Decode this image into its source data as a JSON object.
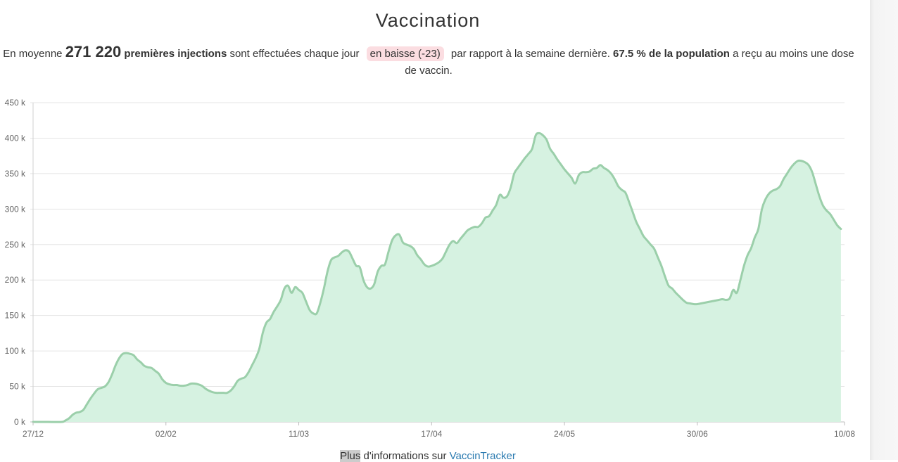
{
  "header": {
    "title": "Vaccination"
  },
  "summary": {
    "prefix": "En moyenne",
    "value": "271 220",
    "metric": "premières injections",
    "middle": "sont effectuées chaque jour",
    "trend_badge": "en baisse (-23)",
    "after_badge": "par rapport à la semaine dernière.",
    "population_pct": "67.5 % de la population",
    "suffix": "a reçu au moins une dose de vaccin."
  },
  "footer": {
    "highlight": "Plus",
    "text": "d'informations sur",
    "link_label": "VaccinTracker"
  },
  "colors": {
    "line": "#9bcfaa",
    "fill": "#d6f2e1",
    "badge_bg": "#fbdde1",
    "grid": "#e5e5e5",
    "link": "#2a7ab0"
  },
  "chart_data": {
    "type": "area",
    "title": "",
    "xlabel": "",
    "ylabel": "",
    "x_start": "27/12",
    "x_ticks": [
      {
        "label": "27/12",
        "day": 0
      },
      {
        "label": "02/02",
        "day": 37
      },
      {
        "label": "11/03",
        "day": 74
      },
      {
        "label": "17/04",
        "day": 111
      },
      {
        "label": "24/05",
        "day": 148
      },
      {
        "label": "30/06",
        "day": 185
      },
      {
        "label": "10/08",
        "day": 226
      }
    ],
    "y_ticks": [
      {
        "label": "0 k",
        "value": 0
      },
      {
        "label": "50 k",
        "value": 50000
      },
      {
        "label": "100 k",
        "value": 100000
      },
      {
        "label": "150 k",
        "value": 150000
      },
      {
        "label": "200 k",
        "value": 200000
      },
      {
        "label": "250 k",
        "value": 250000
      },
      {
        "label": "300 k",
        "value": 300000
      },
      {
        "label": "350 k",
        "value": 350000
      },
      {
        "label": "400 k",
        "value": 400000
      },
      {
        "label": "450 k",
        "value": 450000
      }
    ],
    "ylim": [
      0,
      450000
    ],
    "xlim_days": [
      0,
      226
    ],
    "grid": true,
    "legend": "none",
    "series": [
      {
        "points": [
          [
            0,
            0
          ],
          [
            4,
            0
          ],
          [
            8,
            0
          ],
          [
            9,
            2000
          ],
          [
            10,
            5000
          ],
          [
            11,
            10000
          ],
          [
            12,
            13000
          ],
          [
            13,
            14000
          ],
          [
            14,
            17000
          ],
          [
            15,
            25000
          ],
          [
            16,
            33000
          ],
          [
            17,
            40000
          ],
          [
            18,
            46000
          ],
          [
            19,
            48000
          ],
          [
            20,
            50000
          ],
          [
            21,
            56000
          ],
          [
            22,
            67000
          ],
          [
            23,
            80000
          ],
          [
            24,
            90000
          ],
          [
            25,
            96000
          ],
          [
            26,
            97000
          ],
          [
            27,
            96000
          ],
          [
            28,
            94000
          ],
          [
            29,
            88000
          ],
          [
            30,
            84000
          ],
          [
            31,
            79000
          ],
          [
            32,
            77000
          ],
          [
            33,
            76000
          ],
          [
            34,
            72000
          ],
          [
            35,
            68000
          ],
          [
            36,
            60000
          ],
          [
            37,
            55000
          ],
          [
            38,
            53000
          ],
          [
            39,
            52000
          ],
          [
            40,
            52000
          ],
          [
            41,
            51000
          ],
          [
            42,
            51000
          ],
          [
            43,
            52000
          ],
          [
            44,
            54000
          ],
          [
            45,
            54000
          ],
          [
            46,
            53000
          ],
          [
            47,
            51000
          ],
          [
            48,
            47000
          ],
          [
            49,
            44000
          ],
          [
            50,
            42000
          ],
          [
            51,
            41000
          ],
          [
            52,
            41000
          ],
          [
            53,
            41000
          ],
          [
            54,
            41000
          ],
          [
            55,
            44000
          ],
          [
            56,
            50000
          ],
          [
            57,
            58000
          ],
          [
            58,
            61000
          ],
          [
            59,
            63000
          ],
          [
            60,
            70000
          ],
          [
            61,
            80000
          ],
          [
            62,
            90000
          ],
          [
            63,
            103000
          ],
          [
            64,
            126000
          ],
          [
            65,
            140000
          ],
          [
            66,
            145000
          ],
          [
            67,
            155000
          ],
          [
            68,
            163000
          ],
          [
            69,
            172000
          ],
          [
            70,
            188000
          ],
          [
            71,
            192000
          ],
          [
            72,
            182000
          ],
          [
            73,
            190000
          ],
          [
            74,
            186000
          ],
          [
            75,
            182000
          ],
          [
            76,
            170000
          ],
          [
            77,
            158000
          ],
          [
            78,
            153000
          ],
          [
            79,
            153000
          ],
          [
            80,
            168000
          ],
          [
            81,
            188000
          ],
          [
            82,
            212000
          ],
          [
            83,
            228000
          ],
          [
            84,
            232000
          ],
          [
            85,
            234000
          ],
          [
            86,
            239000
          ],
          [
            87,
            242000
          ],
          [
            88,
            240000
          ],
          [
            89,
            230000
          ],
          [
            90,
            220000
          ],
          [
            91,
            218000
          ],
          [
            92,
            200000
          ],
          [
            93,
            190000
          ],
          [
            94,
            188000
          ],
          [
            95,
            194000
          ],
          [
            96,
            212000
          ],
          [
            97,
            220000
          ],
          [
            98,
            222000
          ],
          [
            99,
            240000
          ],
          [
            100,
            256000
          ],
          [
            101,
            263000
          ],
          [
            102,
            264000
          ],
          [
            103,
            253000
          ],
          [
            104,
            250000
          ],
          [
            105,
            248000
          ],
          [
            106,
            244000
          ],
          [
            107,
            235000
          ],
          [
            108,
            229000
          ],
          [
            109,
            222000
          ],
          [
            110,
            219000
          ],
          [
            111,
            220000
          ],
          [
            112,
            222000
          ],
          [
            113,
            225000
          ],
          [
            114,
            230000
          ],
          [
            115,
            240000
          ],
          [
            116,
            250000
          ],
          [
            117,
            255000
          ],
          [
            118,
            252000
          ],
          [
            119,
            258000
          ],
          [
            120,
            264000
          ],
          [
            121,
            270000
          ],
          [
            122,
            273000
          ],
          [
            123,
            275000
          ],
          [
            124,
            275000
          ],
          [
            125,
            280000
          ],
          [
            126,
            288000
          ],
          [
            127,
            290000
          ],
          [
            128,
            298000
          ],
          [
            129,
            306000
          ],
          [
            130,
            320000
          ],
          [
            131,
            316000
          ],
          [
            132,
            318000
          ],
          [
            133,
            330000
          ],
          [
            134,
            350000
          ],
          [
            135,
            358000
          ],
          [
            136,
            365000
          ],
          [
            137,
            372000
          ],
          [
            138,
            378000
          ],
          [
            139,
            385000
          ],
          [
            140,
            404000
          ],
          [
            141,
            407000
          ],
          [
            142,
            404000
          ],
          [
            143,
            398000
          ],
          [
            144,
            385000
          ],
          [
            145,
            378000
          ],
          [
            146,
            370000
          ],
          [
            147,
            363000
          ],
          [
            148,
            356000
          ],
          [
            149,
            350000
          ],
          [
            150,
            344000
          ],
          [
            151,
            336000
          ],
          [
            152,
            348000
          ],
          [
            153,
            352000
          ],
          [
            154,
            352000
          ],
          [
            155,
            353000
          ],
          [
            156,
            357000
          ],
          [
            157,
            358000
          ],
          [
            158,
            362000
          ],
          [
            159,
            358000
          ],
          [
            160,
            355000
          ],
          [
            161,
            350000
          ],
          [
            162,
            342000
          ],
          [
            163,
            332000
          ],
          [
            164,
            327000
          ],
          [
            165,
            323000
          ],
          [
            166,
            310000
          ],
          [
            167,
            296000
          ],
          [
            168,
            282000
          ],
          [
            169,
            272000
          ],
          [
            170,
            262000
          ],
          [
            171,
            256000
          ],
          [
            172,
            250000
          ],
          [
            173,
            244000
          ],
          [
            174,
            232000
          ],
          [
            175,
            220000
          ],
          [
            176,
            205000
          ],
          [
            177,
            192000
          ],
          [
            178,
            188000
          ],
          [
            179,
            182000
          ],
          [
            180,
            177000
          ],
          [
            181,
            172000
          ],
          [
            182,
            168000
          ],
          [
            183,
            167000
          ],
          [
            184,
            166000
          ],
          [
            185,
            166000
          ],
          [
            186,
            167000
          ],
          [
            187,
            168000
          ],
          [
            188,
            169000
          ],
          [
            189,
            170000
          ],
          [
            190,
            171000
          ],
          [
            191,
            172000
          ],
          [
            192,
            173000
          ],
          [
            193,
            172000
          ],
          [
            194,
            174000
          ],
          [
            195,
            186000
          ],
          [
            196,
            182000
          ],
          [
            197,
            200000
          ],
          [
            198,
            220000
          ],
          [
            199,
            235000
          ],
          [
            200,
            245000
          ],
          [
            201,
            260000
          ],
          [
            202,
            272000
          ],
          [
            203,
            300000
          ],
          [
            204,
            314000
          ],
          [
            205,
            322000
          ],
          [
            206,
            326000
          ],
          [
            207,
            328000
          ],
          [
            208,
            332000
          ],
          [
            209,
            342000
          ],
          [
            210,
            350000
          ],
          [
            211,
            358000
          ],
          [
            212,
            364000
          ],
          [
            213,
            368000
          ],
          [
            214,
            368000
          ],
          [
            215,
            366000
          ],
          [
            216,
            362000
          ],
          [
            217,
            352000
          ],
          [
            218,
            335000
          ],
          [
            219,
            318000
          ],
          [
            220,
            305000
          ],
          [
            221,
            298000
          ],
          [
            222,
            293000
          ],
          [
            223,
            285000
          ],
          [
            224,
            277000
          ],
          [
            225,
            272000
          ]
        ]
      }
    ]
  }
}
